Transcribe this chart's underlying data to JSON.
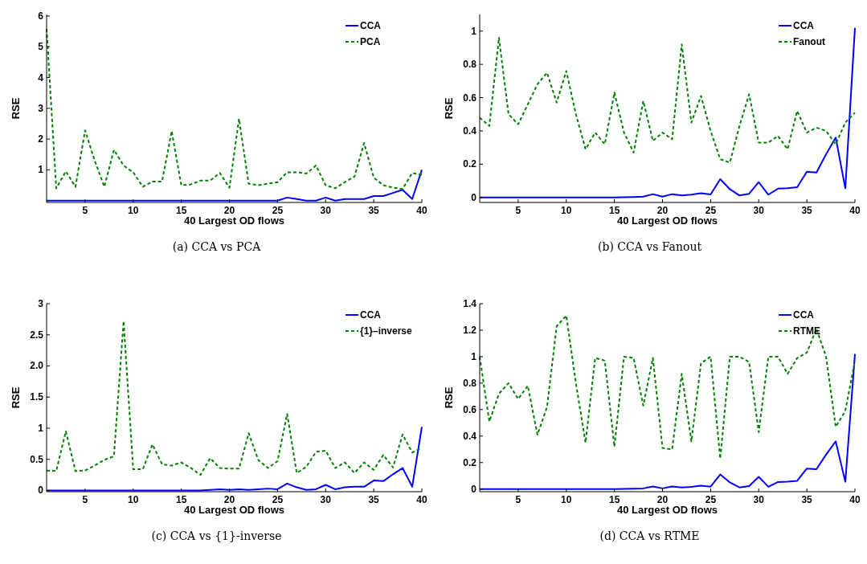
{
  "chart_data": [
    {
      "type": "line",
      "title": "(a)  CCA vs PCA",
      "xlabel": "40 Largest OD flows",
      "ylabel": "RSE",
      "xlim": [
        1,
        40
      ],
      "xticks": [
        5,
        10,
        15,
        20,
        25,
        30,
        35,
        40
      ],
      "ylim": [
        -0.06,
        6.05
      ],
      "yticks": [
        1,
        2,
        3,
        4,
        5,
        6
      ],
      "legend": "top right",
      "x": [
        1,
        2,
        3,
        4,
        5,
        6,
        7,
        8,
        9,
        10,
        11,
        12,
        13,
        14,
        15,
        16,
        17,
        18,
        19,
        20,
        21,
        22,
        23,
        24,
        25,
        26,
        27,
        28,
        29,
        30,
        31,
        32,
        33,
        34,
        35,
        36,
        37,
        38,
        39,
        40
      ],
      "series": [
        {
          "name": "CCA",
          "color": "#0000ff",
          "line_style": "solid",
          "values": [
            0,
            0,
            0,
            0,
            0,
            0,
            0,
            0,
            0,
            0,
            0,
            0,
            0,
            0,
            0,
            0,
            0,
            0,
            0,
            0,
            0,
            0,
            0,
            0,
            0,
            0.1,
            0.05,
            0,
            0,
            0.1,
            0,
            0.05,
            0.05,
            0.05,
            0.15,
            0.15,
            0.25,
            0.35,
            0.05,
            1
          ]
        },
        {
          "name": "PCA",
          "color": "#008000",
          "line_style": "dashed",
          "values": [
            5.58,
            0.4,
            0.95,
            0.45,
            2.28,
            1.3,
            0.45,
            1.65,
            1.14,
            0.92,
            0.45,
            0.62,
            0.62,
            2.26,
            0.5,
            0.53,
            0.65,
            0.65,
            0.9,
            0.42,
            2.66,
            0.55,
            0.5,
            0.55,
            0.6,
            0.92,
            0.92,
            0.88,
            1.14,
            0.5,
            0.4,
            0.6,
            0.78,
            1.87,
            0.75,
            0.5,
            0.42,
            0.38,
            0.9,
            0.84
          ]
        }
      ]
    },
    {
      "type": "line",
      "title": "(b)  CCA vs Fanout",
      "xlabel": "40 Largest OD flows",
      "ylabel": "RSE",
      "xlim": [
        1,
        40
      ],
      "xticks": [
        5,
        10,
        15,
        20,
        25,
        30,
        35,
        40
      ],
      "ylim": [
        -0.03,
        1.1
      ],
      "yticks": [
        0,
        0.2,
        0.4,
        0.6,
        0.8,
        1
      ],
      "legend": "top right",
      "x": [
        1,
        2,
        3,
        4,
        5,
        6,
        7,
        8,
        9,
        10,
        11,
        12,
        13,
        14,
        15,
        16,
        17,
        18,
        19,
        20,
        21,
        22,
        23,
        24,
        25,
        26,
        27,
        28,
        29,
        30,
        31,
        32,
        33,
        34,
        35,
        36,
        37,
        38,
        39,
        40
      ],
      "series": [
        {
          "name": "CCA",
          "color": "#0000ff",
          "line_style": "solid",
          "values": [
            0,
            0,
            0,
            0,
            0,
            0,
            0,
            0,
            0,
            0,
            0,
            0,
            0,
            0,
            0,
            0.001,
            0.003,
            0.005,
            0.02,
            0.005,
            0.02,
            0.012,
            0.017,
            0.025,
            0.018,
            0.11,
            0.05,
            0.012,
            0.022,
            0.092,
            0.017,
            0.053,
            0.056,
            0.062,
            0.155,
            0.15,
            0.26,
            0.36,
            0.055,
            1.02
          ]
        },
        {
          "name": "Fanout",
          "color": "#008000",
          "line_style": "dashed",
          "values": [
            0.48,
            0.43,
            0.96,
            0.5,
            0.44,
            0.56,
            0.68,
            0.75,
            0.57,
            0.76,
            0.5,
            0.29,
            0.39,
            0.32,
            0.63,
            0.39,
            0.27,
            0.58,
            0.34,
            0.39,
            0.35,
            0.92,
            0.45,
            0.61,
            0.4,
            0.23,
            0.21,
            0.43,
            0.62,
            0.33,
            0.33,
            0.37,
            0.29,
            0.52,
            0.39,
            0.42,
            0.4,
            0.32,
            0.45,
            0.51
          ]
        }
      ]
    },
    {
      "type": "line",
      "title": "(c)  CCA vs {1}-inverse",
      "xlabel": "40 Largest OD flows",
      "ylabel": "RSE",
      "xlim": [
        1,
        40
      ],
      "xticks": [
        5,
        10,
        15,
        20,
        25,
        30,
        35,
        40
      ],
      "ylim": [
        -0.02,
        3
      ],
      "yticks": [
        0,
        0.5,
        1,
        1.5,
        {
          "value": 2,
          "label": "2.0"
        },
        2.5,
        3
      ],
      "legend": "top right",
      "x": [
        1,
        2,
        3,
        4,
        5,
        6,
        7,
        8,
        9,
        10,
        11,
        12,
        13,
        14,
        15,
        16,
        17,
        18,
        19,
        20,
        21,
        22,
        23,
        24,
        25,
        26,
        27,
        28,
        29,
        30,
        31,
        32,
        33,
        34,
        35,
        36,
        37,
        38,
        39,
        40
      ],
      "series": [
        {
          "name": "CCA",
          "color": "#0000ff",
          "line_style": "solid",
          "values": [
            0,
            0,
            0,
            0,
            0,
            0,
            0,
            0,
            0,
            0,
            0,
            0,
            0,
            0,
            0,
            0,
            0,
            0.01,
            0.02,
            0.01,
            0.02,
            0.01,
            0.02,
            0.03,
            0.02,
            0.11,
            0.05,
            0.01,
            0.02,
            0.09,
            0.02,
            0.05,
            0.06,
            0.06,
            0.16,
            0.15,
            0.26,
            0.36,
            0.06,
            1.02
          ]
        },
        {
          "name": "{1}–inverse",
          "color": "#008000",
          "line_style": "dashed",
          "values": [
            0.32,
            0.31,
            0.95,
            0.31,
            0.32,
            0.4,
            0.49,
            0.55,
            2.72,
            0.34,
            0.34,
            0.74,
            0.42,
            0.4,
            0.45,
            0.36,
            0.25,
            0.52,
            0.36,
            0.35,
            0.35,
            0.92,
            0.49,
            0.36,
            0.47,
            1.23,
            0.28,
            0.38,
            0.62,
            0.64,
            0.36,
            0.45,
            0.28,
            0.45,
            0.33,
            0.57,
            0.37,
            0.9,
            0.61,
            0.68
          ]
        }
      ]
    },
    {
      "type": "line",
      "title": "(d)  CCA vs RTME",
      "xlabel": "40 Largest OD flows",
      "ylabel": "RSE",
      "xlim": [
        1,
        40
      ],
      "xticks": [
        5,
        10,
        15,
        20,
        25,
        30,
        35,
        40
      ],
      "ylim": [
        -0.02,
        1.4
      ],
      "yticks": [
        0,
        0.2,
        0.4,
        0.6,
        0.8,
        1,
        1.2,
        1.4
      ],
      "legend": "top right",
      "x": [
        1,
        2,
        3,
        4,
        5,
        6,
        7,
        8,
        9,
        10,
        11,
        12,
        13,
        14,
        15,
        16,
        17,
        18,
        19,
        20,
        21,
        22,
        23,
        24,
        25,
        26,
        27,
        28,
        29,
        30,
        31,
        32,
        33,
        34,
        35,
        36,
        37,
        38,
        39,
        40
      ],
      "series": [
        {
          "name": "CCA",
          "color": "#0000ff",
          "line_style": "solid",
          "values": [
            0,
            0,
            0,
            0,
            0,
            0,
            0,
            0,
            0,
            0,
            0,
            0,
            0,
            0,
            0,
            0.001,
            0.003,
            0.005,
            0.02,
            0.005,
            0.02,
            0.012,
            0.017,
            0.025,
            0.018,
            0.11,
            0.05,
            0.012,
            0.022,
            0.092,
            0.017,
            0.053,
            0.056,
            0.062,
            0.155,
            0.15,
            0.26,
            0.36,
            0.055,
            1.02
          ]
        },
        {
          "name": "RTME",
          "color": "#008000",
          "line_style": "dashed",
          "values": [
            1.0,
            0.51,
            0.72,
            0.8,
            0.68,
            0.78,
            0.41,
            0.62,
            1.23,
            1.31,
            0.8,
            0.35,
            0.99,
            0.97,
            0.32,
            1.0,
            0.99,
            0.63,
            0.99,
            0.31,
            0.3,
            0.87,
            0.36,
            0.95,
            1.0,
            0.23,
            1.0,
            1.0,
            0.96,
            0.43,
            1.0,
            1.0,
            0.87,
            0.99,
            1.03,
            1.21,
            1.0,
            0.47,
            0.59,
            0.97
          ]
        }
      ]
    }
  ]
}
